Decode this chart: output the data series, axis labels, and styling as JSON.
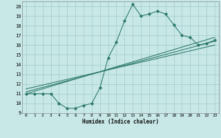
{
  "title": "",
  "xlabel": "Humidex (Indice chaleur)",
  "bg_color": "#c8e8e8",
  "line_color": "#2d7a6a",
  "grid_color": "#a0c8c8",
  "xlim": [
    -0.5,
    23.5
  ],
  "ylim": [
    9,
    20.5
  ],
  "xticks": [
    0,
    1,
    2,
    3,
    4,
    5,
    6,
    7,
    8,
    9,
    10,
    11,
    12,
    13,
    14,
    15,
    16,
    17,
    18,
    19,
    20,
    21,
    22,
    23
  ],
  "yticks": [
    9,
    10,
    11,
    12,
    13,
    14,
    15,
    16,
    17,
    18,
    19,
    20
  ],
  "curve1_x": [
    0,
    1,
    2,
    3,
    4,
    5,
    6,
    7,
    8,
    9,
    10,
    11,
    12,
    13,
    14,
    15,
    16,
    17,
    18,
    19,
    20,
    21,
    22,
    23
  ],
  "curve1_y": [
    11,
    11,
    11,
    11,
    10,
    9.5,
    9.5,
    9.8,
    10,
    11.6,
    14.7,
    16.3,
    18.5,
    20.2,
    19,
    19.2,
    19.5,
    19.2,
    18.1,
    17,
    16.8,
    16,
    16.2,
    16.5
  ],
  "trend1_x": [
    0,
    23
  ],
  "trend1_y": [
    11.0,
    16.8
  ],
  "trend2_x": [
    0,
    23
  ],
  "trend2_y": [
    11.2,
    16.4
  ],
  "trend3_x": [
    0,
    23
  ],
  "trend3_y": [
    11.5,
    16.0
  ],
  "lw": 0.8,
  "ms": 1.8
}
